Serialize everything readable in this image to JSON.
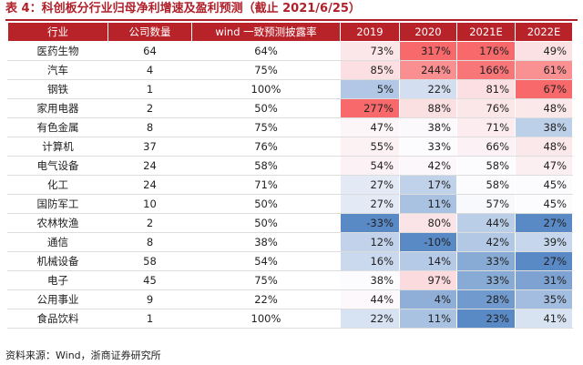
{
  "header": {
    "title": "表 4：科创板分行业归母净利增速及盈利预测（截止 2021/6/25）"
  },
  "table": {
    "columns": [
      "行业",
      "公司数量",
      "wind 一致预测披露率",
      "2019",
      "2020",
      "2021E",
      "2022E"
    ],
    "rows": [
      [
        "医药生物",
        64,
        "64%",
        "73%",
        "317%",
        "176%",
        "49%"
      ],
      [
        "汽车",
        4,
        "75%",
        "85%",
        "244%",
        "166%",
        "61%"
      ],
      [
        "钢铁",
        1,
        "100%",
        "5%",
        "22%",
        "81%",
        "67%"
      ],
      [
        "家用电器",
        2,
        "50%",
        "277%",
        "88%",
        "76%",
        "48%"
      ],
      [
        "有色金属",
        8,
        "75%",
        "47%",
        "38%",
        "71%",
        "38%"
      ],
      [
        "计算机",
        37,
        "76%",
        "55%",
        "33%",
        "66%",
        "48%"
      ],
      [
        "电气设备",
        24,
        "58%",
        "54%",
        "42%",
        "58%",
        "47%"
      ],
      [
        "化工",
        24,
        "71%",
        "27%",
        "17%",
        "58%",
        "45%"
      ],
      [
        "国防军工",
        10,
        "50%",
        "27%",
        "11%",
        "57%",
        "45%"
      ],
      [
        "农林牧渔",
        2,
        "50%",
        "-33%",
        "80%",
        "44%",
        "27%"
      ],
      [
        "通信",
        8,
        "38%",
        "12%",
        "-10%",
        "42%",
        "39%"
      ],
      [
        "机械设备",
        58,
        "54%",
        "16%",
        "14%",
        "33%",
        "27%"
      ],
      [
        "电子",
        45,
        "75%",
        "38%",
        "97%",
        "33%",
        "31%"
      ],
      [
        "公用事业",
        9,
        "22%",
        "44%",
        "4%",
        "28%",
        "35%"
      ],
      [
        "食品饮料",
        1,
        "100%",
        "22%",
        "11%",
        "23%",
        "41%"
      ]
    ]
  },
  "footer": {
    "source": "资料来源：Wind，浙商证券研究所"
  }
}
